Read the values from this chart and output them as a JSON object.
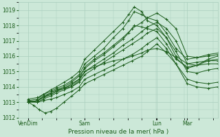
{
  "xlabel": "Pression niveau de la mer( hPa )",
  "bg_color": "#cce8d8",
  "grid_color": "#aacfbe",
  "line_color": "#1a5c1a",
  "ylim": [
    1012,
    1019.5
  ],
  "yticks": [
    1012,
    1013,
    1014,
    1015,
    1016,
    1017,
    1018,
    1019
  ],
  "xtick_labels": [
    "VenDim",
    "Sam",
    "Lun",
    "Mar"
  ],
  "xtick_positions": [
    0.05,
    0.35,
    0.73,
    0.89
  ],
  "xlim": [
    0.0,
    1.05
  ],
  "series": [
    {
      "x": [
        0.05,
        0.1,
        0.13,
        0.17,
        0.2,
        0.24,
        0.28,
        0.32,
        0.35,
        0.4,
        0.45,
        0.5,
        0.55,
        0.6,
        0.65,
        0.68,
        0.73,
        0.78,
        0.83,
        0.89,
        0.94,
        1.0,
        1.05
      ],
      "y": [
        1013.0,
        1013.1,
        1013.4,
        1013.6,
        1013.8,
        1013.9,
        1014.1,
        1014.5,
        1015.3,
        1015.8,
        1016.2,
        1016.7,
        1017.2,
        1017.8,
        1018.2,
        1018.5,
        1018.8,
        1018.4,
        1017.8,
        1016.0,
        1015.9,
        1016.1,
        1016.2
      ]
    },
    {
      "x": [
        0.05,
        0.1,
        0.13,
        0.17,
        0.2,
        0.24,
        0.28,
        0.32,
        0.35,
        0.4,
        0.45,
        0.5,
        0.55,
        0.6,
        0.65,
        0.68,
        0.73,
        0.78,
        0.83,
        0.89,
        0.94,
        1.0,
        1.05
      ],
      "y": [
        1013.0,
        1013.1,
        1013.3,
        1013.5,
        1013.7,
        1013.9,
        1014.0,
        1014.4,
        1015.0,
        1015.4,
        1015.8,
        1016.2,
        1016.7,
        1017.1,
        1017.6,
        1017.9,
        1018.2,
        1017.8,
        1017.0,
        1015.5,
        1015.4,
        1015.7,
        1015.8
      ]
    },
    {
      "x": [
        0.05,
        0.1,
        0.13,
        0.17,
        0.2,
        0.24,
        0.28,
        0.32,
        0.35,
        0.4,
        0.45,
        0.5,
        0.55,
        0.58,
        0.61,
        0.65,
        0.68,
        0.73,
        0.78,
        0.83,
        0.89,
        0.94,
        1.0,
        1.05
      ],
      "y": [
        1013.1,
        1013.2,
        1013.5,
        1013.7,
        1013.9,
        1014.1,
        1014.4,
        1014.8,
        1015.5,
        1016.0,
        1016.5,
        1017.2,
        1017.8,
        1018.3,
        1018.9,
        1018.7,
        1018.5,
        1018.3,
        1017.5,
        1016.5,
        1015.8,
        1015.9,
        1016.0,
        1016.1
      ]
    },
    {
      "x": [
        0.05,
        0.1,
        0.13,
        0.17,
        0.2,
        0.24,
        0.28,
        0.32,
        0.35,
        0.4,
        0.45,
        0.5,
        0.55,
        0.58,
        0.61,
        0.65,
        0.68,
        0.73,
        0.78,
        0.83,
        0.89,
        0.94,
        1.0,
        1.05
      ],
      "y": [
        1013.2,
        1013.3,
        1013.5,
        1013.8,
        1014.0,
        1014.3,
        1014.6,
        1015.0,
        1015.8,
        1016.4,
        1017.0,
        1017.6,
        1018.2,
        1018.7,
        1019.2,
        1018.9,
        1018.3,
        1018.0,
        1017.2,
        1016.0,
        1015.5,
        1015.6,
        1015.7,
        1015.7
      ]
    },
    {
      "x": [
        0.05,
        0.1,
        0.13,
        0.17,
        0.2,
        0.24,
        0.28,
        0.32,
        0.35,
        0.4,
        0.45,
        0.5,
        0.55,
        0.58,
        0.61,
        0.65,
        0.68,
        0.73,
        0.78,
        0.83,
        0.89,
        0.94,
        1.0,
        1.05
      ],
      "y": [
        1013.0,
        1013.1,
        1013.3,
        1013.6,
        1013.8,
        1014.0,
        1014.3,
        1014.7,
        1015.2,
        1015.7,
        1016.1,
        1016.6,
        1017.1,
        1017.5,
        1018.0,
        1017.9,
        1017.8,
        1017.6,
        1016.8,
        1015.8,
        1015.3,
        1015.4,
        1015.5,
        1015.5
      ]
    },
    {
      "x": [
        0.05,
        0.1,
        0.13,
        0.17,
        0.2,
        0.24,
        0.28,
        0.32,
        0.35,
        0.4,
        0.45,
        0.5,
        0.55,
        0.6,
        0.65,
        0.68,
        0.73,
        0.78,
        0.83,
        0.89,
        0.94,
        1.0,
        1.05
      ],
      "y": [
        1013.0,
        1013.0,
        1013.2,
        1013.4,
        1013.6,
        1013.8,
        1014.0,
        1014.3,
        1014.8,
        1015.2,
        1015.6,
        1016.0,
        1016.4,
        1016.8,
        1017.2,
        1017.5,
        1017.8,
        1017.2,
        1016.3,
        1015.0,
        1014.9,
        1015.1,
        1015.2
      ]
    },
    {
      "x": [
        0.05,
        0.1,
        0.13,
        0.17,
        0.2,
        0.24,
        0.28,
        0.32,
        0.35,
        0.4,
        0.45,
        0.5,
        0.55,
        0.6,
        0.65,
        0.68,
        0.73,
        0.78,
        0.83,
        0.89,
        0.94,
        1.0,
        1.05
      ],
      "y": [
        1013.1,
        1013.0,
        1013.1,
        1013.2,
        1013.3,
        1013.5,
        1013.7,
        1014.0,
        1014.5,
        1014.8,
        1015.1,
        1015.4,
        1015.8,
        1016.1,
        1016.5,
        1016.8,
        1017.2,
        1016.5,
        1015.5,
        1014.5,
        1014.3,
        1014.2,
        1014.3
      ]
    },
    {
      "x": [
        0.05,
        0.08,
        0.11,
        0.14,
        0.17,
        0.2,
        0.24,
        0.28,
        0.32,
        0.35,
        0.4,
        0.45,
        0.5,
        0.55,
        0.6,
        0.65,
        0.68,
        0.73,
        0.78,
        0.83,
        0.89,
        0.94,
        1.0,
        1.05
      ],
      "y": [
        1013.0,
        1012.8,
        1012.5,
        1012.3,
        1012.4,
        1012.6,
        1013.0,
        1013.4,
        1013.8,
        1014.2,
        1014.5,
        1014.8,
        1015.1,
        1015.4,
        1015.7,
        1016.0,
        1016.3,
        1016.8,
        1016.2,
        1015.5,
        1014.2,
        1014.0,
        1013.9,
        1014.0
      ]
    },
    {
      "x": [
        0.05,
        0.1,
        0.13,
        0.17,
        0.2,
        0.24,
        0.28,
        0.32,
        0.35,
        0.4,
        0.45,
        0.5,
        0.55,
        0.6,
        0.65,
        0.68,
        0.73,
        0.78,
        0.83,
        0.89,
        0.94,
        1.0,
        1.05
      ],
      "y": [
        1013.0,
        1013.1,
        1013.3,
        1013.5,
        1013.7,
        1013.9,
        1014.2,
        1014.5,
        1015.0,
        1015.3,
        1015.5,
        1015.7,
        1015.8,
        1016.0,
        1016.2,
        1016.4,
        1016.5,
        1016.3,
        1015.9,
        1015.2,
        1015.4,
        1015.8,
        1016.0
      ]
    }
  ]
}
